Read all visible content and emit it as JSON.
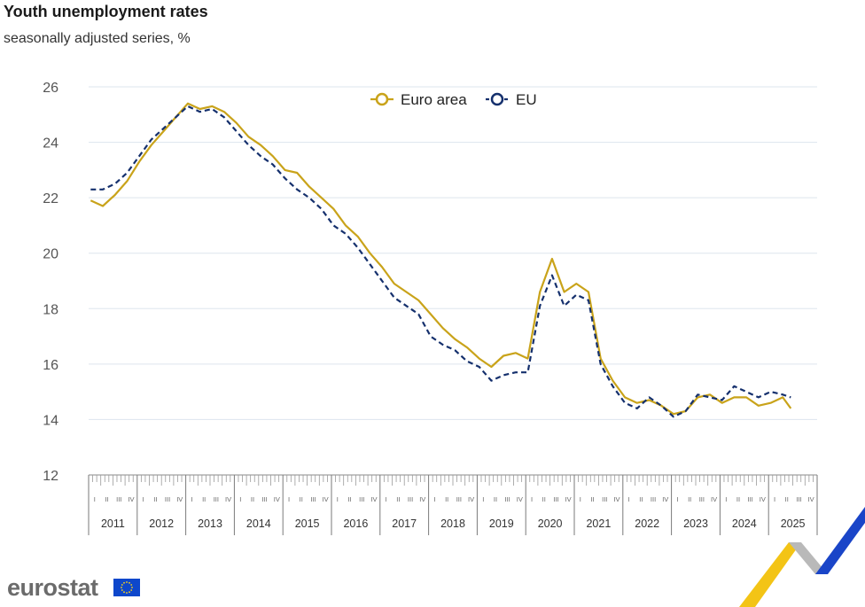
{
  "header": {
    "title": "Youth unemployment rates",
    "subtitle": "seasonally adjusted series, %"
  },
  "logo": {
    "text": "eurostat"
  },
  "colors": {
    "euro_area": "#c9a31a",
    "eu": "#15306d",
    "grid": "#dde5ee",
    "accent_yellow": "#f3c416",
    "accent_blue": "#1a45c8"
  },
  "chart_data": {
    "type": "line",
    "title": "Youth unemployment rates",
    "subtitle": "seasonally adjusted series, %",
    "xlabel": "",
    "ylabel": "",
    "ylim": [
      12,
      26
    ],
    "yticks": [
      12,
      14,
      16,
      18,
      20,
      22,
      24,
      26
    ],
    "grid": true,
    "legend_position": "top-center",
    "years": [
      "2011",
      "2012",
      "2013",
      "2014",
      "2015",
      "2016",
      "2017",
      "2018",
      "2019",
      "2020",
      "2021",
      "2022",
      "2023",
      "2024",
      "2025"
    ],
    "quarters": [
      "I",
      "II",
      "III",
      "IV"
    ],
    "x_start": "2011-01",
    "x_end": "2025-12",
    "series": [
      {
        "name": "Euro area",
        "style": "solid",
        "points": [
          [
            "2011-01",
            21.9
          ],
          [
            "2011-04",
            21.7
          ],
          [
            "2011-07",
            22.1
          ],
          [
            "2011-10",
            22.6
          ],
          [
            "2012-01",
            23.3
          ],
          [
            "2012-04",
            23.9
          ],
          [
            "2012-07",
            24.4
          ],
          [
            "2012-10",
            24.9
          ],
          [
            "2013-01",
            25.4
          ],
          [
            "2013-04",
            25.2
          ],
          [
            "2013-07",
            25.3
          ],
          [
            "2013-10",
            25.1
          ],
          [
            "2014-01",
            24.7
          ],
          [
            "2014-04",
            24.2
          ],
          [
            "2014-07",
            23.9
          ],
          [
            "2014-10",
            23.5
          ],
          [
            "2015-01",
            23.0
          ],
          [
            "2015-04",
            22.9
          ],
          [
            "2015-07",
            22.4
          ],
          [
            "2015-10",
            22.0
          ],
          [
            "2016-01",
            21.6
          ],
          [
            "2016-04",
            21.0
          ],
          [
            "2016-07",
            20.6
          ],
          [
            "2016-10",
            20.0
          ],
          [
            "2017-01",
            19.5
          ],
          [
            "2017-04",
            18.9
          ],
          [
            "2017-07",
            18.6
          ],
          [
            "2017-10",
            18.3
          ],
          [
            "2018-01",
            17.8
          ],
          [
            "2018-04",
            17.3
          ],
          [
            "2018-07",
            16.9
          ],
          [
            "2018-10",
            16.6
          ],
          [
            "2019-01",
            16.2
          ],
          [
            "2019-04",
            15.9
          ],
          [
            "2019-07",
            16.3
          ],
          [
            "2019-10",
            16.4
          ],
          [
            "2020-01",
            16.2
          ],
          [
            "2020-04",
            18.6
          ],
          [
            "2020-07",
            19.8
          ],
          [
            "2020-10",
            18.6
          ],
          [
            "2021-01",
            18.9
          ],
          [
            "2021-04",
            18.6
          ],
          [
            "2021-07",
            16.2
          ],
          [
            "2021-10",
            15.4
          ],
          [
            "2022-01",
            14.8
          ],
          [
            "2022-04",
            14.6
          ],
          [
            "2022-07",
            14.7
          ],
          [
            "2022-10",
            14.5
          ],
          [
            "2023-01",
            14.2
          ],
          [
            "2023-04",
            14.3
          ],
          [
            "2023-07",
            14.8
          ],
          [
            "2023-10",
            14.9
          ],
          [
            "2024-01",
            14.6
          ],
          [
            "2024-04",
            14.8
          ],
          [
            "2024-07",
            14.8
          ],
          [
            "2024-10",
            14.5
          ],
          [
            "2025-01",
            14.6
          ],
          [
            "2025-04",
            14.8
          ],
          [
            "2025-06",
            14.4
          ]
        ]
      },
      {
        "name": "EU",
        "style": "dashed",
        "points": [
          [
            "2011-01",
            22.3
          ],
          [
            "2011-04",
            22.3
          ],
          [
            "2011-07",
            22.5
          ],
          [
            "2011-10",
            22.9
          ],
          [
            "2012-01",
            23.5
          ],
          [
            "2012-04",
            24.1
          ],
          [
            "2012-07",
            24.5
          ],
          [
            "2012-10",
            24.9
          ],
          [
            "2013-01",
            25.3
          ],
          [
            "2013-04",
            25.1
          ],
          [
            "2013-07",
            25.2
          ],
          [
            "2013-10",
            24.9
          ],
          [
            "2014-01",
            24.4
          ],
          [
            "2014-04",
            23.9
          ],
          [
            "2014-07",
            23.5
          ],
          [
            "2014-10",
            23.2
          ],
          [
            "2015-01",
            22.7
          ],
          [
            "2015-04",
            22.3
          ],
          [
            "2015-07",
            22.0
          ],
          [
            "2015-10",
            21.6
          ],
          [
            "2016-01",
            21.0
          ],
          [
            "2016-04",
            20.7
          ],
          [
            "2016-07",
            20.2
          ],
          [
            "2016-10",
            19.6
          ],
          [
            "2017-01",
            19.0
          ],
          [
            "2017-04",
            18.4
          ],
          [
            "2017-07",
            18.1
          ],
          [
            "2017-10",
            17.8
          ],
          [
            "2018-01",
            17.0
          ],
          [
            "2018-04",
            16.7
          ],
          [
            "2018-07",
            16.5
          ],
          [
            "2018-10",
            16.1
          ],
          [
            "2019-01",
            15.9
          ],
          [
            "2019-04",
            15.4
          ],
          [
            "2019-07",
            15.6
          ],
          [
            "2019-10",
            15.7
          ],
          [
            "2020-01",
            15.7
          ],
          [
            "2020-04",
            18.1
          ],
          [
            "2020-07",
            19.2
          ],
          [
            "2020-10",
            18.1
          ],
          [
            "2021-01",
            18.5
          ],
          [
            "2021-04",
            18.3
          ],
          [
            "2021-07",
            16.0
          ],
          [
            "2021-10",
            15.2
          ],
          [
            "2022-01",
            14.6
          ],
          [
            "2022-04",
            14.4
          ],
          [
            "2022-07",
            14.8
          ],
          [
            "2022-10",
            14.5
          ],
          [
            "2023-01",
            14.1
          ],
          [
            "2023-04",
            14.3
          ],
          [
            "2023-07",
            14.9
          ],
          [
            "2023-10",
            14.8
          ],
          [
            "2024-01",
            14.7
          ],
          [
            "2024-04",
            15.2
          ],
          [
            "2024-07",
            15.0
          ],
          [
            "2024-10",
            14.8
          ],
          [
            "2025-01",
            15.0
          ],
          [
            "2025-04",
            14.9
          ],
          [
            "2025-06",
            14.8
          ]
        ]
      }
    ]
  }
}
